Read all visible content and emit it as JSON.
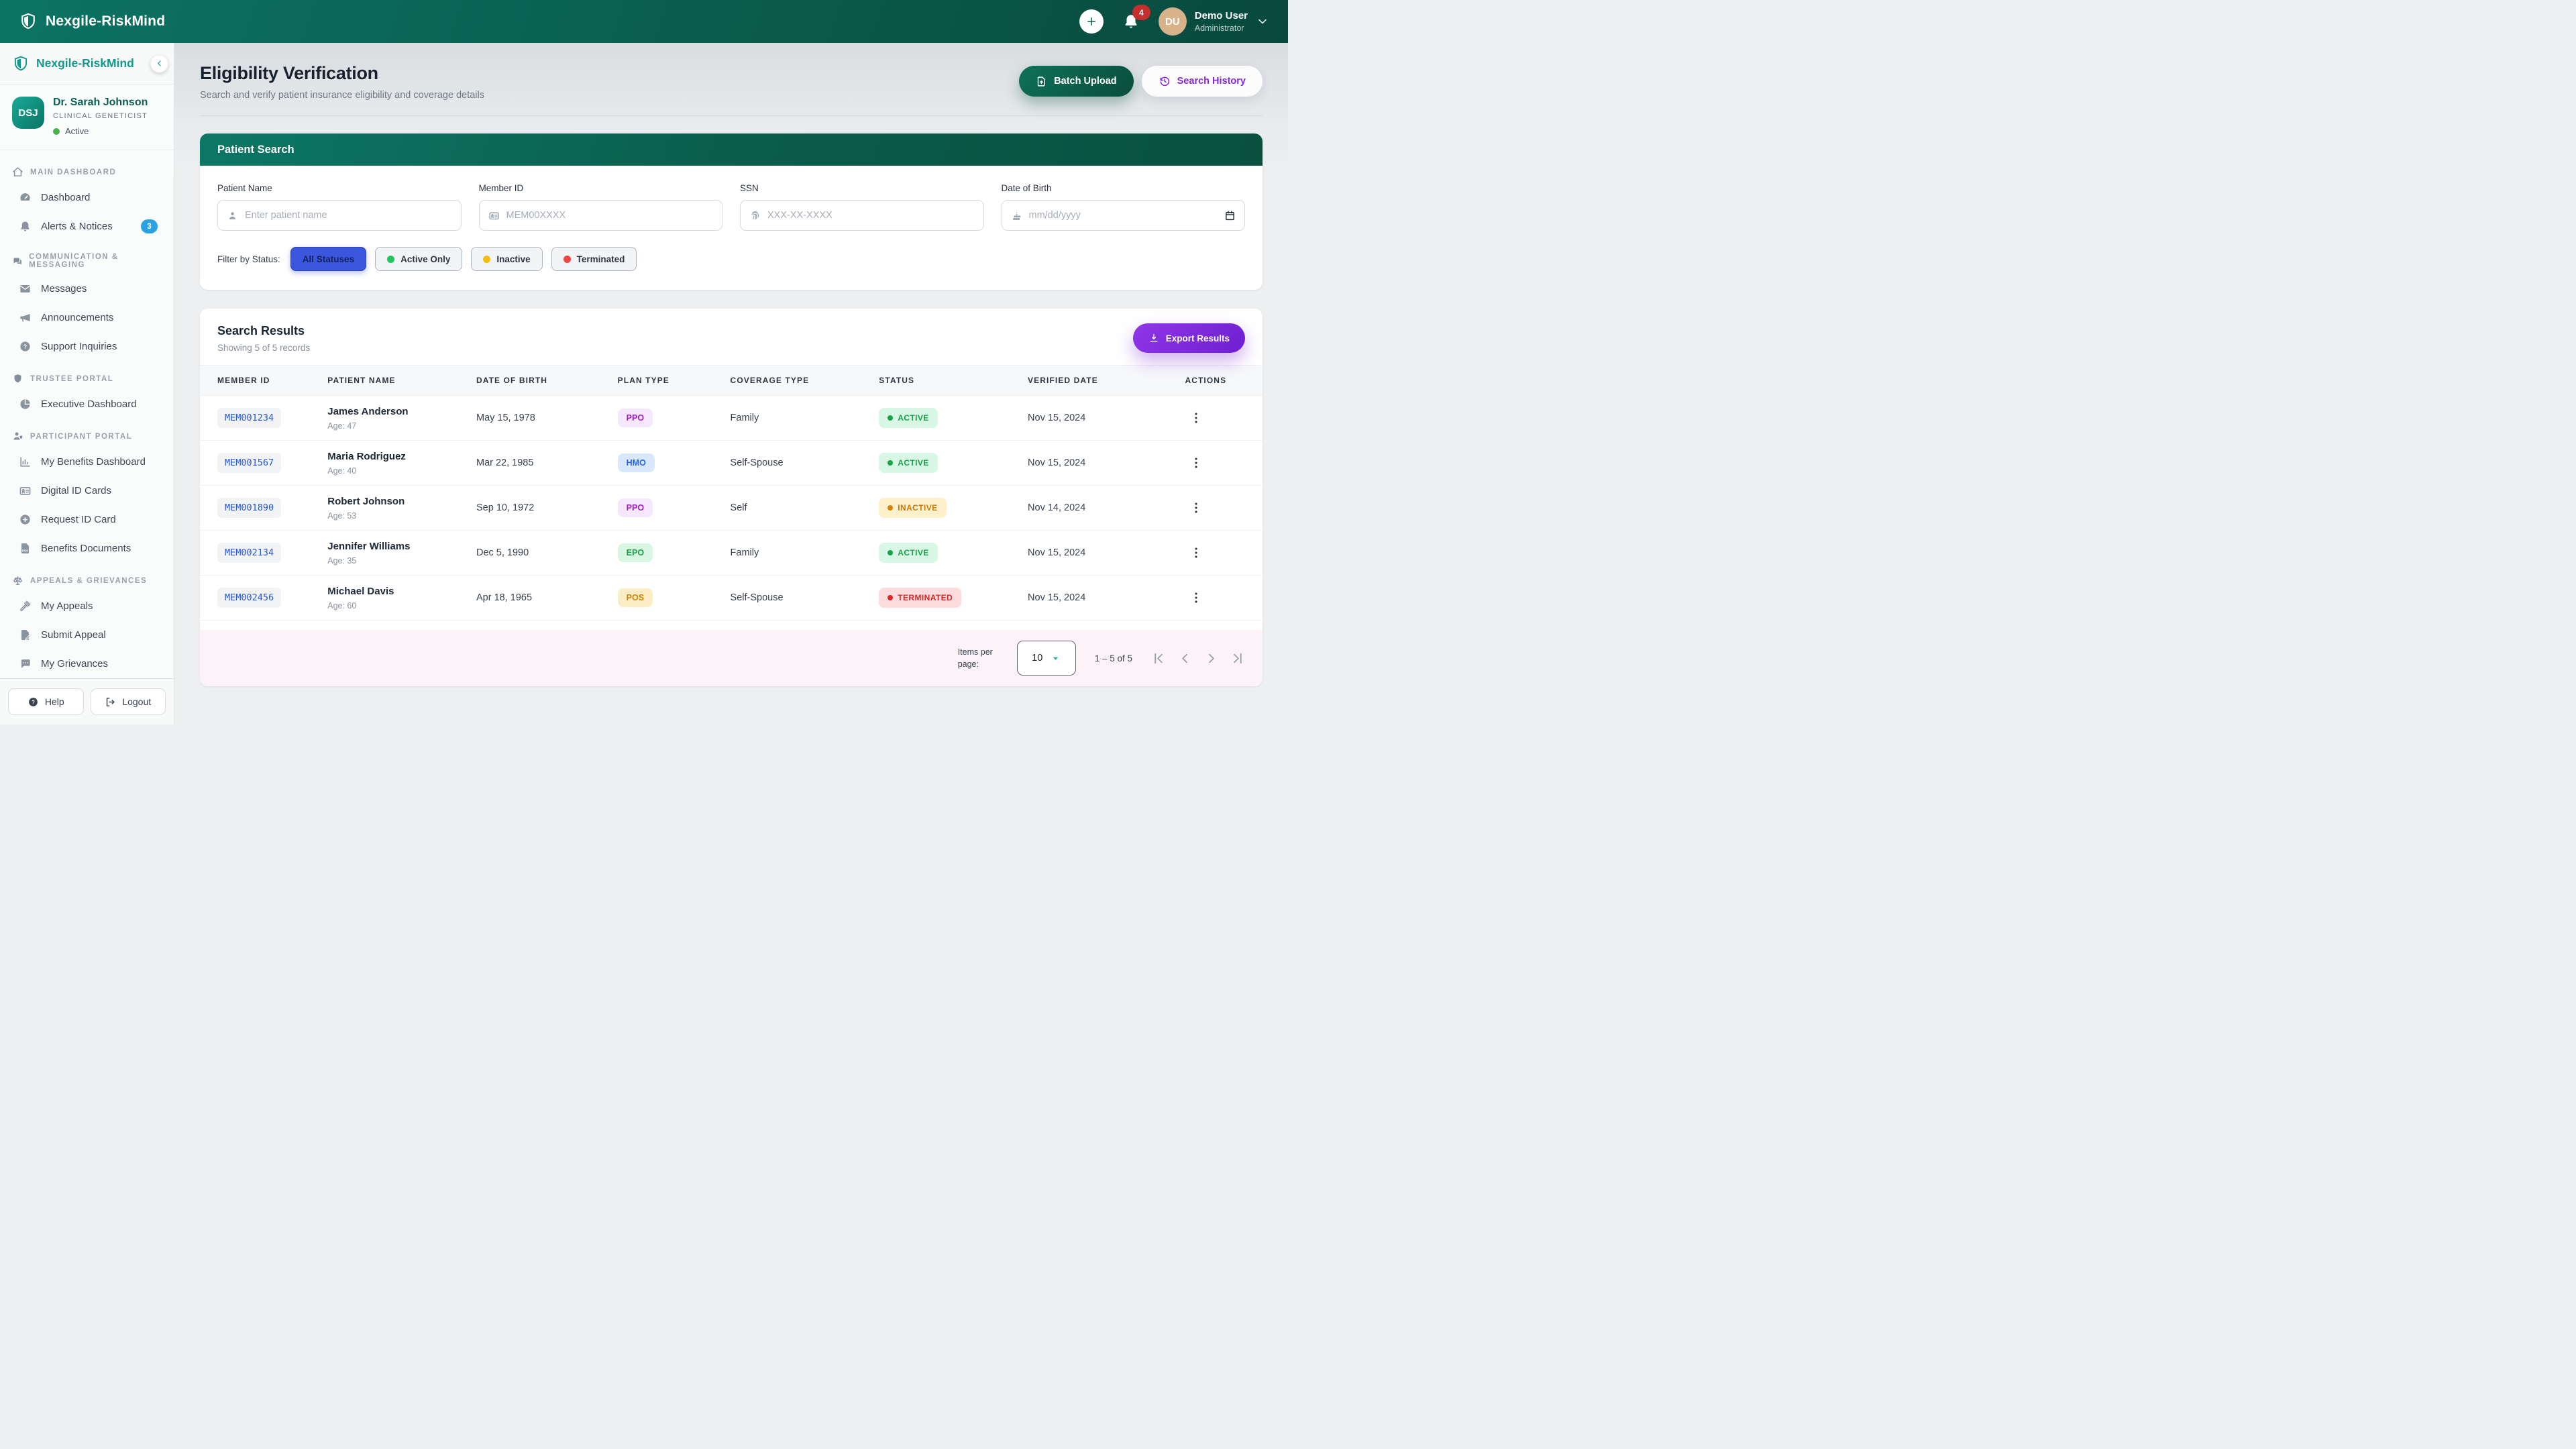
{
  "colors": {
    "header_green": "#0a5d4e",
    "brand_teal": "#12998a",
    "active_filter_blue": "#3a57dd",
    "notification_badge_red": "#c62f2f",
    "alerts_badge_blue": "#2ba2e3",
    "export_purple": "#7e22ce",
    "batch_upload_green": "#0a4c3b",
    "footer_pink": "#fbf3f7",
    "status_active_green": "#17a34a",
    "status_inactive_amber": "#c8790a",
    "status_terminated_red": "#dc2626",
    "member_id_blue": "#2456e0"
  },
  "topbar": {
    "brand": "Nexgile-RiskMind",
    "notification_count": "4",
    "user_initials": "DU",
    "user_name": "Demo User",
    "user_role": "Administrator"
  },
  "sidebar": {
    "brand": "Nexgile-RiskMind",
    "profile": {
      "initials": "DSJ",
      "name": "Dr. Sarah Johnson",
      "title": "CLINICAL GENETICIST",
      "status": "Active"
    },
    "sections": [
      {
        "label": "MAIN DASHBOARD",
        "icon": "home",
        "items": [
          {
            "label": "Dashboard",
            "icon": "gauge"
          },
          {
            "label": "Alerts & Notices",
            "icon": "bell",
            "badge": "3"
          }
        ]
      },
      {
        "label": "COMMUNICATION & MESSAGING",
        "icon": "chat",
        "items": [
          {
            "label": "Messages",
            "icon": "mail"
          },
          {
            "label": "Announcements",
            "icon": "megaphone"
          },
          {
            "label": "Support Inquiries",
            "icon": "question"
          }
        ]
      },
      {
        "label": "TRUSTEE PORTAL",
        "icon": "shield",
        "items": [
          {
            "label": "Executive Dashboard",
            "icon": "pie"
          }
        ]
      },
      {
        "label": "PARTICIPANT PORTAL",
        "icon": "person",
        "items": [
          {
            "label": "My Benefits Dashboard",
            "icon": "chart"
          },
          {
            "label": "Digital ID Cards",
            "icon": "idcard"
          },
          {
            "label": "Request ID Card",
            "icon": "pluscircle"
          },
          {
            "label": "Benefits Documents",
            "icon": "pdf"
          }
        ]
      },
      {
        "label": "APPEALS & GRIEVANCES",
        "icon": "scales",
        "items": [
          {
            "label": "My Appeals",
            "icon": "gavel"
          },
          {
            "label": "Submit Appeal",
            "icon": "filepen"
          },
          {
            "label": "My Grievances",
            "icon": "comment"
          }
        ]
      }
    ],
    "footer": {
      "help": "Help",
      "logout": "Logout"
    }
  },
  "page": {
    "title": "Eligibility Verification",
    "subtitle": "Search and verify patient insurance eligibility and coverage details",
    "batch_upload": "Batch Upload",
    "search_history": "Search History"
  },
  "search": {
    "title": "Patient Search",
    "fields": [
      {
        "label": "Patient Name",
        "placeholder": "Enter patient name",
        "icon": "user"
      },
      {
        "label": "Member ID",
        "placeholder": "MEM00XXXX",
        "icon": "idcard"
      },
      {
        "label": "SSN",
        "placeholder": "XXX-XX-XXXX",
        "icon": "fingerprint"
      },
      {
        "label": "Date of Birth",
        "placeholder": "mm/dd/yyyy",
        "icon": "cake"
      }
    ],
    "filter_label": "Filter by Status:",
    "filters": [
      {
        "label": "All Statuses",
        "active": true
      },
      {
        "label": "Active Only",
        "dot": "#21c55d"
      },
      {
        "label": "Inactive",
        "dot": "#f6be15"
      },
      {
        "label": "Terminated",
        "dot": "#ee4444"
      }
    ]
  },
  "results": {
    "title": "Search Results",
    "subtitle": "Showing 5 of 5 records",
    "export_label": "Export Results",
    "columns": [
      "MEMBER ID",
      "PATIENT NAME",
      "DATE OF BIRTH",
      "PLAN TYPE",
      "COVERAGE TYPE",
      "STATUS",
      "VERIFIED DATE",
      "ACTIONS"
    ],
    "rows": [
      {
        "member_id": "MEM001234",
        "name": "James Anderson",
        "age": "Age: 47",
        "dob": "May 15, 1978",
        "plan": "PPO",
        "coverage": "Family",
        "status": "ACTIVE",
        "verified": "Nov 15, 2024"
      },
      {
        "member_id": "MEM001567",
        "name": "Maria Rodriguez",
        "age": "Age: 40",
        "dob": "Mar 22, 1985",
        "plan": "HMO",
        "coverage": "Self-Spouse",
        "status": "ACTIVE",
        "verified": "Nov 15, 2024"
      },
      {
        "member_id": "MEM001890",
        "name": "Robert Johnson",
        "age": "Age: 53",
        "dob": "Sep 10, 1972",
        "plan": "PPO",
        "coverage": "Self",
        "status": "INACTIVE",
        "verified": "Nov 14, 2024"
      },
      {
        "member_id": "MEM002134",
        "name": "Jennifer Williams",
        "age": "Age: 35",
        "dob": "Dec 5, 1990",
        "plan": "EPO",
        "coverage": "Family",
        "status": "ACTIVE",
        "verified": "Nov 15, 2024"
      },
      {
        "member_id": "MEM002456",
        "name": "Michael Davis",
        "age": "Age: 60",
        "dob": "Apr 18, 1965",
        "plan": "POS",
        "coverage": "Self-Spouse",
        "status": "TERMINATED",
        "verified": "Nov 15, 2024"
      }
    ],
    "pagination": {
      "items_per_page_label": "Items per page:",
      "items_per_page": "10",
      "range": "1 – 5 of 5"
    }
  }
}
